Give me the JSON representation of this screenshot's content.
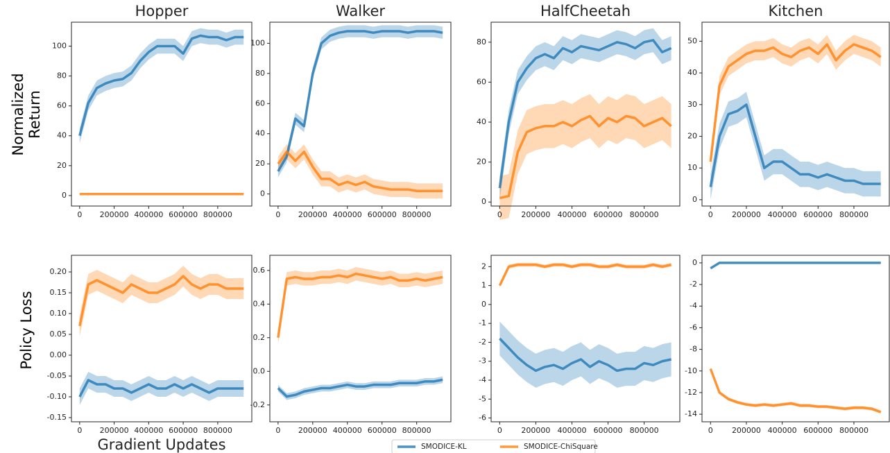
{
  "chart_data": [
    {
      "type": "line",
      "title": "Hopper",
      "ylabel": "Normalized Return",
      "x": [
        0,
        50000,
        100000,
        150000,
        200000,
        250000,
        300000,
        350000,
        400000,
        450000,
        500000,
        550000,
        600000,
        650000,
        700000,
        750000,
        800000,
        850000,
        900000,
        950000
      ],
      "xlim": [
        -47500,
        997500
      ],
      "xticks": [
        0,
        200000,
        400000,
        600000,
        800000
      ],
      "ylim": [
        -7,
        116
      ],
      "yticks": [
        0,
        20,
        40,
        60,
        80,
        100
      ],
      "series": [
        {
          "name": "SMODICE-KL",
          "color": "#1f77b4",
          "error": 5,
          "values": [
            40,
            62,
            72,
            75,
            77,
            78,
            82,
            90,
            96,
            100,
            100,
            100,
            95,
            105,
            107,
            106,
            106,
            104,
            106,
            106
          ]
        },
        {
          "name": "SMODICE-ChiSquare",
          "color": "#ff7f0e",
          "error": 0.3,
          "values": [
            1,
            1,
            1,
            1,
            1,
            1,
            1,
            1,
            1,
            1,
            1,
            1,
            1,
            1,
            1,
            1,
            1,
            1,
            1,
            1
          ]
        }
      ]
    },
    {
      "type": "line",
      "title": "Walker",
      "x": [
        0,
        50000,
        100000,
        150000,
        200000,
        250000,
        300000,
        350000,
        400000,
        450000,
        500000,
        550000,
        600000,
        650000,
        700000,
        750000,
        800000,
        850000,
        900000,
        950000
      ],
      "xlim": [
        -47500,
        997500
      ],
      "xticks": [
        0,
        200000,
        400000,
        600000,
        800000
      ],
      "ylim": [
        -8,
        114
      ],
      "yticks": [
        0,
        20,
        40,
        60,
        80,
        100
      ],
      "series": [
        {
          "color": "#1f77b4",
          "error": 4,
          "values": [
            15,
            25,
            50,
            45,
            80,
            100,
            105,
            107,
            108,
            108,
            108,
            107,
            108,
            108,
            108,
            107,
            108,
            108,
            108,
            107
          ]
        },
        {
          "color": "#ff7f0e",
          "error": 5,
          "values": [
            20,
            28,
            22,
            28,
            18,
            10,
            10,
            6,
            8,
            6,
            8,
            5,
            4,
            3,
            3,
            3,
            2,
            2,
            2,
            2
          ]
        }
      ]
    },
    {
      "type": "line",
      "title": "HalfCheetah",
      "x": [
        0,
        50000,
        100000,
        150000,
        200000,
        250000,
        300000,
        350000,
        400000,
        450000,
        500000,
        550000,
        600000,
        650000,
        700000,
        750000,
        800000,
        850000,
        900000,
        950000
      ],
      "xlim": [
        -47500,
        997500
      ],
      "xticks": [
        0,
        200000,
        400000,
        600000,
        800000
      ],
      "ylim": [
        -2,
        90
      ],
      "yticks": [
        0,
        20,
        40,
        60,
        80
      ],
      "series": [
        {
          "color": "#1f77b4",
          "error": 6,
          "values": [
            7,
            40,
            60,
            67,
            72,
            74,
            72,
            77,
            75,
            78,
            77,
            76,
            78,
            80,
            79,
            77,
            80,
            81,
            75,
            77
          ]
        },
        {
          "color": "#ff7f0e",
          "error": 11,
          "values": [
            2,
            3,
            25,
            35,
            37,
            38,
            38,
            40,
            38,
            41,
            43,
            38,
            42,
            40,
            43,
            42,
            38,
            40,
            42,
            38
          ]
        }
      ]
    },
    {
      "type": "line",
      "title": "Kitchen",
      "x": [
        0,
        50000,
        100000,
        150000,
        200000,
        250000,
        300000,
        350000,
        400000,
        450000,
        500000,
        550000,
        600000,
        650000,
        700000,
        750000,
        800000,
        850000,
        900000,
        950000
      ],
      "xlim": [
        -47500,
        997500
      ],
      "xticks": [
        0,
        200000,
        400000,
        600000,
        800000
      ],
      "ylim": [
        -2,
        56
      ],
      "yticks": [
        0,
        10,
        20,
        30,
        40,
        50
      ],
      "series": [
        {
          "color": "#1f77b4",
          "error": 4,
          "values": [
            4,
            20,
            27,
            28,
            30,
            20,
            10,
            12,
            12,
            10,
            8,
            8,
            7,
            8,
            7,
            6,
            6,
            5,
            5,
            5
          ]
        },
        {
          "color": "#ff7f0e",
          "error": 3,
          "values": [
            12,
            36,
            42,
            44,
            46,
            47,
            47,
            48,
            46,
            45,
            47,
            48,
            46,
            49,
            44,
            47,
            49,
            48,
            47,
            45
          ]
        }
      ]
    },
    {
      "type": "line",
      "ylabel": "Policy Loss",
      "xlabel": "Gradient Updates",
      "x": [
        0,
        50000,
        100000,
        150000,
        200000,
        250000,
        300000,
        350000,
        400000,
        450000,
        500000,
        550000,
        600000,
        650000,
        700000,
        750000,
        800000,
        850000,
        900000,
        950000
      ],
      "xlim": [
        -47500,
        997500
      ],
      "xticks": [
        0,
        200000,
        400000,
        600000,
        800000
      ],
      "ylim": [
        -0.16,
        0.24
      ],
      "yticks": [
        -0.15,
        {
          "value": -0.1,
          "label": "-0.10"
        },
        -0.05,
        {
          "value": 0,
          "label": "0.00"
        },
        0.05,
        {
          "value": 0.1,
          "label": "0.10"
        },
        0.15,
        {
          "value": 0.2,
          "label": "0.20"
        }
      ],
      "series": [
        {
          "color": "#1f77b4",
          "error": 0.02,
          "values": [
            -0.1,
            -0.06,
            -0.07,
            -0.07,
            -0.08,
            -0.08,
            -0.09,
            -0.08,
            -0.07,
            -0.08,
            -0.08,
            -0.07,
            -0.08,
            -0.07,
            -0.08,
            -0.09,
            -0.08,
            -0.08,
            -0.08,
            -0.08
          ]
        },
        {
          "color": "#ff7f0e",
          "error": 0.025,
          "values": [
            0.07,
            0.17,
            0.18,
            0.17,
            0.16,
            0.15,
            0.17,
            0.16,
            0.15,
            0.15,
            0.16,
            0.17,
            0.19,
            0.17,
            0.16,
            0.17,
            0.17,
            0.16,
            0.16,
            0.16
          ]
        }
      ]
    },
    {
      "type": "line",
      "x": [
        0,
        50000,
        100000,
        150000,
        200000,
        250000,
        300000,
        350000,
        400000,
        450000,
        500000,
        550000,
        600000,
        650000,
        700000,
        750000,
        800000,
        850000,
        900000,
        950000
      ],
      "xlim": [
        -47500,
        997500
      ],
      "xticks": [
        0,
        200000,
        400000,
        600000,
        800000
      ],
      "ylim": [
        -0.3,
        0.69
      ],
      "yticks": [
        -0.2,
        {
          "value": 0,
          "label": "0.0"
        },
        0.2,
        0.4,
        0.6
      ],
      "series": [
        {
          "color": "#1f77b4",
          "error": 0.02,
          "values": [
            -0.1,
            -0.15,
            -0.14,
            -0.12,
            -0.11,
            -0.1,
            -0.1,
            -0.09,
            -0.08,
            -0.09,
            -0.09,
            -0.08,
            -0.08,
            -0.08,
            -0.07,
            -0.07,
            -0.07,
            -0.06,
            -0.06,
            -0.05
          ]
        },
        {
          "color": "#ff7f0e",
          "error": 0.04,
          "values": [
            0.2,
            0.55,
            0.56,
            0.55,
            0.55,
            0.56,
            0.56,
            0.57,
            0.56,
            0.58,
            0.57,
            0.56,
            0.55,
            0.56,
            0.54,
            0.54,
            0.55,
            0.54,
            0.55,
            0.56
          ]
        }
      ]
    },
    {
      "type": "line",
      "x": [
        0,
        50000,
        100000,
        150000,
        200000,
        250000,
        300000,
        350000,
        400000,
        450000,
        500000,
        550000,
        600000,
        650000,
        700000,
        750000,
        800000,
        850000,
        900000,
        950000
      ],
      "xlim": [
        -47500,
        997500
      ],
      "xticks": [
        0,
        200000,
        400000,
        600000,
        800000
      ],
      "ylim": [
        -6.2,
        2.6
      ],
      "yticks": [
        -6,
        -5,
        -4,
        -3,
        -2,
        -1,
        0,
        1,
        2
      ],
      "series": [
        {
          "color": "#1f77b4",
          "error": 0.9,
          "values": [
            -1.8,
            -2.3,
            -2.8,
            -3.2,
            -3.5,
            -3.3,
            -3.2,
            -3.4,
            -3.1,
            -2.9,
            -3.3,
            -3.0,
            -3.2,
            -3.5,
            -3.4,
            -3.4,
            -3.1,
            -3.2,
            -3.0,
            -2.9
          ]
        },
        {
          "color": "#ff7f0e",
          "error": 0.1,
          "values": [
            1.0,
            2.0,
            2.1,
            2.1,
            2.1,
            2.0,
            2.1,
            2.1,
            2.0,
            2.1,
            2.1,
            2.0,
            2.0,
            2.1,
            2.0,
            2.0,
            2.0,
            2.1,
            2.0,
            2.1
          ]
        }
      ]
    },
    {
      "type": "line",
      "x": [
        0,
        50000,
        100000,
        150000,
        200000,
        250000,
        300000,
        350000,
        400000,
        450000,
        500000,
        550000,
        600000,
        650000,
        700000,
        750000,
        800000,
        850000,
        900000,
        950000
      ],
      "xlim": [
        -47500,
        997500
      ],
      "xticks": [
        0,
        200000,
        400000,
        600000,
        800000
      ],
      "ylim": [
        -14.7,
        0.7
      ],
      "yticks": [
        -14,
        -12,
        -10,
        -8,
        -6,
        -4,
        -2,
        0
      ],
      "series": [
        {
          "color": "#1f77b4",
          "error": 0.05,
          "values": [
            -0.5,
            0,
            0,
            0,
            0,
            0,
            0,
            0,
            0,
            0,
            0,
            0,
            0,
            0,
            0,
            0,
            0,
            0,
            0,
            0
          ]
        },
        {
          "color": "#ff7f0e",
          "error": 0.15,
          "values": [
            -9.8,
            -12.0,
            -12.6,
            -12.9,
            -13.1,
            -13.2,
            -13.1,
            -13.2,
            -13.1,
            -13.0,
            -13.2,
            -13.2,
            -13.3,
            -13.3,
            -13.4,
            -13.5,
            -13.4,
            -13.4,
            -13.5,
            -13.8
          ]
        }
      ]
    }
  ]
}
